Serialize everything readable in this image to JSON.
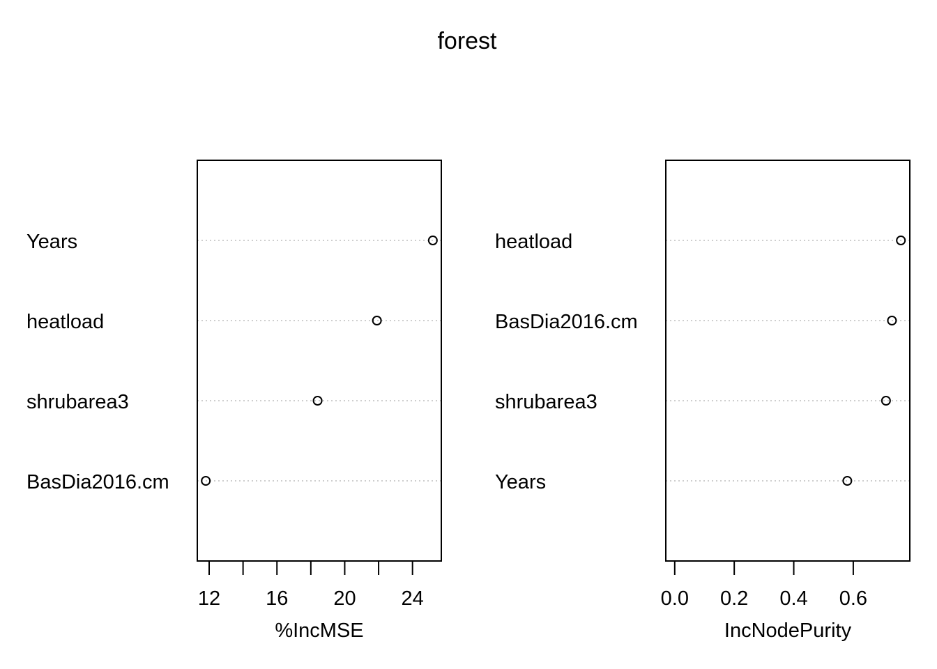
{
  "chart_data": [
    {
      "type": "scatter",
      "subtype": "dotchart",
      "title": "forest",
      "xlabel": "%IncMSE",
      "ylabel": "",
      "categories": [
        "Years",
        "heatload",
        "shrubarea3",
        "BasDia2016.cm"
      ],
      "values": [
        25.2,
        21.9,
        18.4,
        11.8
      ],
      "xlim": [
        11.3,
        25.7
      ],
      "xticks": [
        12,
        14,
        16,
        18,
        20,
        22,
        24
      ],
      "xtick_labels": [
        "12",
        "",
        "16",
        "",
        "20",
        "",
        "24"
      ],
      "grid": "dotted horizontal lines",
      "marker": "open circle"
    },
    {
      "type": "scatter",
      "subtype": "dotchart",
      "xlabel": "IncNodePurity",
      "ylabel": "",
      "categories": [
        "heatload",
        "BasDia2016.cm",
        "shrubarea3",
        "Years"
      ],
      "values": [
        0.76,
        0.73,
        0.71,
        0.58
      ],
      "xlim": [
        -0.03,
        0.79
      ],
      "xticks": [
        0.0,
        0.2,
        0.4,
        0.6
      ],
      "xtick_labels": [
        "0.0",
        "0.2",
        "0.4",
        "0.6"
      ],
      "grid": "dotted horizontal lines",
      "marker": "open circle"
    }
  ],
  "colors": {
    "points": "#000000",
    "grid": "#bebebe",
    "frame": "#000000"
  }
}
